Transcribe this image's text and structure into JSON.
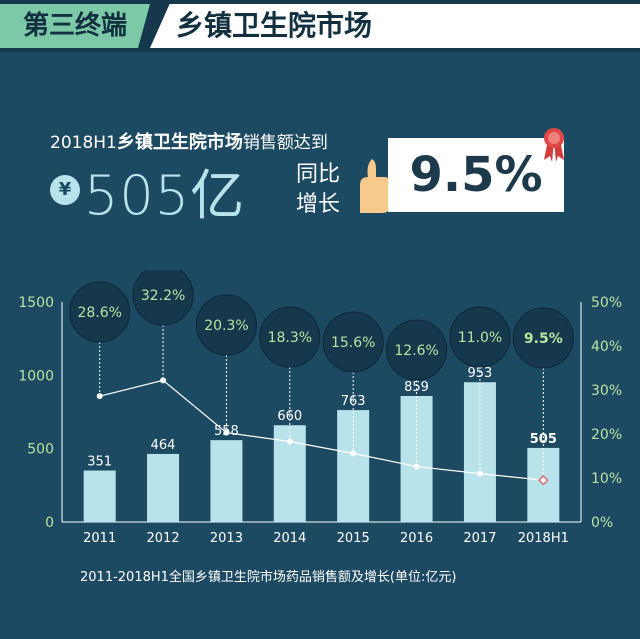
{
  "header": {
    "tag": "第三终端",
    "title": "乡镇卫生院市场"
  },
  "headline": {
    "prefix": "2018H1",
    "highlight": "乡镇卫生院市场",
    "suffix": "销售额达到",
    "currency_symbol": "¥",
    "amount": "505亿",
    "growth_label_line1": "同比",
    "growth_label_line2": "增长",
    "growth_value": "9.5%"
  },
  "caption": "2011-2018H1全国乡镇卫生院市场药品销售额及增长(单位:亿元)",
  "colors": {
    "background": "#1d4a63",
    "header_bg": "#16384d",
    "tag_green": "#7cc9a7",
    "bar": "#b8e3ea",
    "line": "#ffffff",
    "bubble": "#16384d",
    "axis_text": "#b8e3a0",
    "last_marker": "#e05050"
  },
  "chart_data": {
    "type": "bar",
    "categories": [
      "2011",
      "2012",
      "2013",
      "2014",
      "2015",
      "2016",
      "2017",
      "2018H1"
    ],
    "series": [
      {
        "values": [
          351,
          464,
          558,
          660,
          763,
          859,
          953,
          505
        ],
        "axis": "left",
        "kind": "bar"
      },
      {
        "values": [
          28.6,
          32.2,
          20.3,
          18.3,
          15.6,
          12.6,
          11.0,
          9.5
        ],
        "axis": "right",
        "kind": "line"
      }
    ],
    "bar_labels": [
      "351",
      "464",
      "558",
      "660",
      "763",
      "859",
      "953",
      "505"
    ],
    "growth_labels": [
      "28.6%",
      "32.2%",
      "20.3%",
      "18.3%",
      "15.6%",
      "12.6%",
      "11.0%",
      "9.5%"
    ],
    "left_axis": {
      "range": [
        0,
        1500
      ],
      "ticks": [
        "0",
        "500",
        "1000",
        "1500"
      ]
    },
    "right_axis": {
      "range": [
        0,
        50
      ],
      "ticks": [
        "0%",
        "10%",
        "20%",
        "30%",
        "40%",
        "50%"
      ]
    },
    "grid": false
  }
}
